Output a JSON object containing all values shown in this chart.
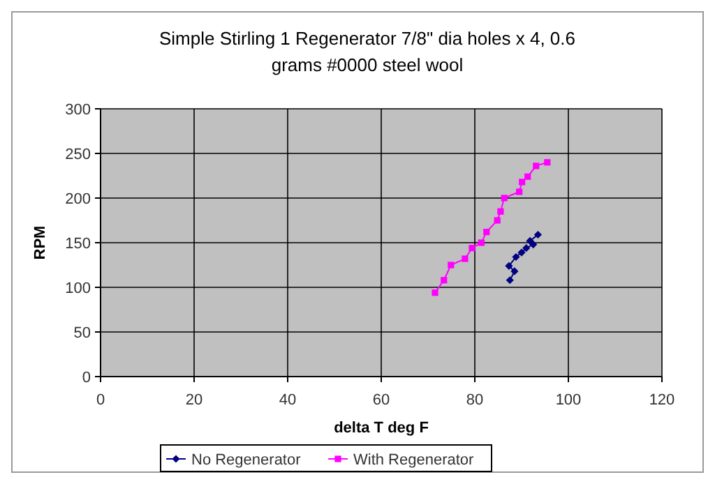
{
  "chart_data": {
    "type": "line",
    "title": "Simple Stirling 1 Regenerator 7/8\" dia holes x 4, 0.6 grams #0000 steel wool",
    "xlabel": "delta T deg F",
    "ylabel": "RPM",
    "xlim": [
      0,
      120
    ],
    "xticks": [
      0,
      20,
      40,
      60,
      80,
      100,
      120
    ],
    "ylim": [
      0,
      300
    ],
    "yticks": [
      0,
      50,
      100,
      150,
      200,
      250,
      300
    ],
    "grid": true,
    "legend": "bottom",
    "series": [
      {
        "name": "No Regenerator",
        "color": "#000080",
        "marker": "diamond",
        "x": [
          87.5,
          88.5,
          87.3,
          88.8,
          90,
          91,
          92.5,
          91.8,
          93.5
        ],
        "values": [
          108,
          118,
          124,
          134,
          139,
          144,
          148,
          152,
          159
        ]
      },
      {
        "name": "With Regenerator",
        "color": "#ff00ff",
        "marker": "square",
        "x": [
          71.5,
          73.4,
          74.9,
          77.9,
          79.4,
          81.4,
          82.5,
          84.8,
          85.5,
          86.3,
          89.5,
          90.1,
          91.3,
          93.1,
          95.5
        ],
        "values": [
          94,
          108,
          125,
          132,
          144,
          150,
          162,
          175,
          185,
          200,
          207,
          218,
          224,
          236,
          240
        ]
      }
    ]
  }
}
